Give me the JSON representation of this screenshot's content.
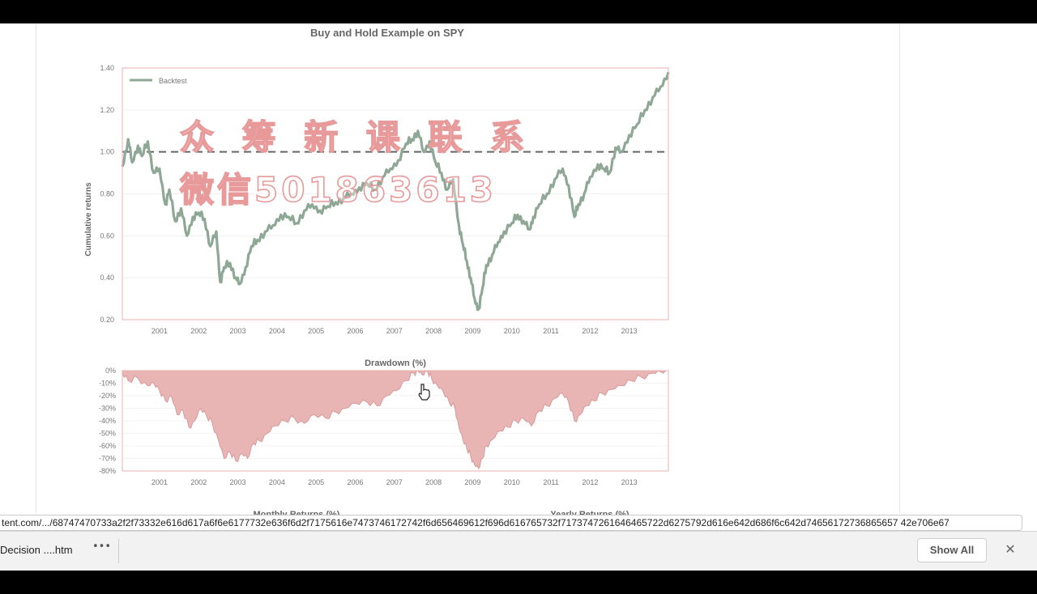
{
  "chart_data": [
    {
      "type": "line",
      "title": "Buy and Hold Example on SPY",
      "ylabel": "Cumulative returns",
      "xlim": [
        2000.05,
        2014.0
      ],
      "ylim": [
        0.2,
        1.4
      ],
      "yticks": [
        "0.20",
        "0.40",
        "0.60",
        "0.80",
        "1.00",
        "1.20",
        "1.40"
      ],
      "xticks": [
        "2001",
        "2002",
        "2003",
        "2004",
        "2005",
        "2006",
        "2007",
        "2008",
        "2009",
        "2010",
        "2011",
        "2012",
        "2013"
      ],
      "legend": "top-left",
      "series": [
        {
          "name": "Backtest",
          "color": "#8fa896",
          "x": [
            2000.05,
            2000.2,
            2000.3,
            2000.45,
            2000.55,
            2000.7,
            2000.85,
            2001.0,
            2001.15,
            2001.25,
            2001.4,
            2001.55,
            2001.7,
            2001.85,
            2002.0,
            2002.15,
            2002.3,
            2002.45,
            2002.55,
            2002.65,
            2002.8,
            2002.95,
            2003.05,
            2003.2,
            2003.35,
            2003.5,
            2003.7,
            2003.9,
            2004.1,
            2004.3,
            2004.5,
            2004.7,
            2004.9,
            2005.1,
            2005.3,
            2005.5,
            2005.7,
            2005.9,
            2006.1,
            2006.3,
            2006.5,
            2006.7,
            2006.9,
            2007.1,
            2007.3,
            2007.45,
            2007.6,
            2007.75,
            2007.9,
            2008.05,
            2008.2,
            2008.35,
            2008.5,
            2008.65,
            2008.75,
            2008.85,
            2008.95,
            2009.05,
            2009.15,
            2009.25,
            2009.35,
            2009.5,
            2009.65,
            2009.8,
            2010.0,
            2010.15,
            2010.3,
            2010.45,
            2010.55,
            2010.7,
            2010.9,
            2011.1,
            2011.3,
            2011.45,
            2011.6,
            2011.7,
            2011.85,
            2012.0,
            2012.2,
            2012.35,
            2012.5,
            2012.65,
            2012.8,
            2013.0,
            2013.2,
            2013.4,
            2013.6,
            2013.8,
            2014.0
          ],
          "y": [
            0.93,
            1.06,
            0.95,
            1.03,
            0.98,
            1.05,
            0.9,
            0.92,
            0.75,
            0.82,
            0.67,
            0.73,
            0.6,
            0.69,
            0.71,
            0.68,
            0.55,
            0.62,
            0.38,
            0.45,
            0.47,
            0.4,
            0.37,
            0.45,
            0.55,
            0.58,
            0.62,
            0.65,
            0.7,
            0.69,
            0.66,
            0.72,
            0.75,
            0.72,
            0.74,
            0.76,
            0.78,
            0.8,
            0.83,
            0.85,
            0.82,
            0.88,
            0.92,
            0.96,
            1.04,
            1.06,
            1.1,
            1.0,
            1.05,
            0.95,
            0.9,
            0.82,
            0.87,
            0.65,
            0.56,
            0.48,
            0.4,
            0.3,
            0.25,
            0.35,
            0.46,
            0.51,
            0.57,
            0.62,
            0.66,
            0.7,
            0.67,
            0.63,
            0.69,
            0.75,
            0.8,
            0.87,
            0.92,
            0.84,
            0.69,
            0.75,
            0.8,
            0.88,
            0.94,
            0.92,
            0.9,
            1.02,
            1.0,
            1.08,
            1.13,
            1.2,
            1.26,
            1.31,
            1.38
          ]
        }
      ],
      "reference_line": 1.0
    },
    {
      "type": "area",
      "title": "Drawdown (%)",
      "xlim": [
        2000.05,
        2014.0
      ],
      "ylim": [
        -80,
        0
      ],
      "yticks": [
        "0%",
        "-10%",
        "-20%",
        "-30%",
        "-40%",
        "-50%",
        "-60%",
        "-70%",
        "-80%"
      ],
      "xticks": [
        "2001",
        "2002",
        "2003",
        "2004",
        "2005",
        "2006",
        "2007",
        "2008",
        "2009",
        "2010",
        "2011",
        "2012",
        "2013"
      ],
      "color": "#e8b4b4",
      "x": [
        2000.05,
        2000.2,
        2000.45,
        2000.7,
        2000.85,
        2001.0,
        2001.15,
        2001.3,
        2001.45,
        2001.6,
        2001.75,
        2001.9,
        2002.05,
        2002.2,
        2002.35,
        2002.5,
        2002.65,
        2002.8,
        2002.95,
        2003.1,
        2003.25,
        2003.4,
        2003.55,
        2003.75,
        2003.95,
        2004.2,
        2004.45,
        2004.7,
        2004.95,
        2005.25,
        2005.5,
        2005.75,
        2006.0,
        2006.3,
        2006.55,
        2006.8,
        2007.05,
        2007.3,
        2007.5,
        2007.6,
        2007.7,
        2007.85,
        2007.95,
        2008.1,
        2008.25,
        2008.4,
        2008.55,
        2008.65,
        2008.75,
        2008.85,
        2008.95,
        2009.05,
        2009.15,
        2009.25,
        2009.35,
        2009.5,
        2009.7,
        2009.9,
        2010.1,
        2010.3,
        2010.5,
        2010.7,
        2010.9,
        2011.1,
        2011.3,
        2011.45,
        2011.6,
        2011.75,
        2011.9,
        2012.1,
        2012.3,
        2012.55,
        2012.8,
        2013.05,
        2013.3,
        2013.6,
        2013.8,
        2014.0
      ],
      "values": [
        -2,
        -8,
        -6,
        -12,
        -10,
        -16,
        -24,
        -20,
        -35,
        -32,
        -45,
        -40,
        -30,
        -36,
        -42,
        -55,
        -70,
        -65,
        -72,
        -66,
        -70,
        -58,
        -56,
        -50,
        -44,
        -40,
        -38,
        -42,
        -35,
        -38,
        -33,
        -30,
        -26,
        -25,
        -28,
        -20,
        -16,
        -8,
        -2,
        0,
        -3,
        -1,
        -6,
        -12,
        -17,
        -25,
        -30,
        -45,
        -55,
        -62,
        -68,
        -75,
        -78,
        -70,
        -60,
        -55,
        -48,
        -45,
        -40,
        -38,
        -44,
        -32,
        -28,
        -22,
        -18,
        -25,
        -40,
        -35,
        -28,
        -24,
        -18,
        -15,
        -12,
        -8,
        -5,
        -2,
        -1,
        0
      ]
    }
  ],
  "watermark": {
    "line1": "众 筹 新 课 联 系",
    "line2": "微信501863613"
  },
  "cut_off_headings": [
    "Monthly Returns (%)",
    "Yearly Returns (%)"
  ],
  "status_url": "tent.com/.../68747470733a2f2f73332e616d617a6f6e6177732e636f6d2f7175616e7473746172742f6d656469612f696d616765732f7173747261646465722d6275792d616e642d686f6c642d74656172736865657 42e706e67",
  "download_shelf": {
    "file_name": "Decision ....htm",
    "more_glyph": "•••",
    "show_all_label": "Show All",
    "close_glyph": "✕"
  }
}
